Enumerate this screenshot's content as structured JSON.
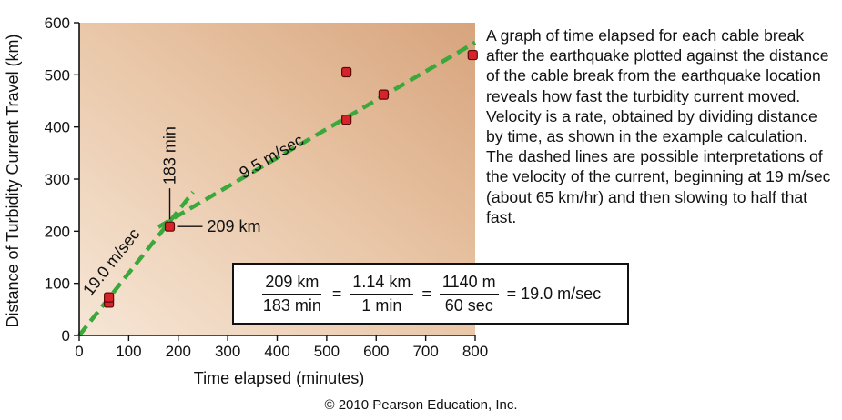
{
  "chart_data": {
    "type": "scatter",
    "xlabel": "Time elapsed (minutes)",
    "ylabel": "Distance of Turbidity Current Travel (km)",
    "xlim": [
      0,
      800
    ],
    "ylim": [
      0,
      600
    ],
    "x_ticks": [
      0,
      100,
      200,
      300,
      400,
      500,
      600,
      700,
      800
    ],
    "y_ticks": [
      0,
      100,
      200,
      300,
      400,
      500,
      600
    ],
    "grid": false,
    "points": [
      {
        "x": 60,
        "y": 63
      },
      {
        "x": 60,
        "y": 73
      },
      {
        "x": 183,
        "y": 209
      },
      {
        "x": 540,
        "y": 505
      },
      {
        "x": 540,
        "y": 414
      },
      {
        "x": 615,
        "y": 462
      },
      {
        "x": 795,
        "y": 538
      }
    ],
    "lines": [
      {
        "label": "19.0 m/sec",
        "style": "dashed",
        "color": "#3aa83a",
        "x": [
          0,
          230
        ],
        "y": [
          0,
          275
        ]
      },
      {
        "label": "9.5 m/sec",
        "style": "dashed",
        "color": "#3aa83a",
        "x": [
          160,
          800
        ],
        "y": [
          208,
          562
        ]
      }
    ],
    "annotations": [
      {
        "text": "183 min",
        "x": 183,
        "y": 209
      },
      {
        "text": "209 km",
        "x": 183,
        "y": 209
      }
    ]
  },
  "caption": "A graph of time elapsed for each cable break after the earthquake plotted against the distance of the cable break from the earthquake location reveals how fast the turbidity current moved. Velocity is a rate, obtained by dividing distance by time, as shown in the example calculation. The dashed lines are possible interpretations of the velocity of the current, beginning at 19 m/sec (about 65 km/hr) and then slowing to half that fast.",
  "formula": {
    "f1_num": "209 km",
    "f1_den": "183 min",
    "f2_num": "1.14 km",
    "f2_den": "1 min",
    "f3_num": "1140 m",
    "f3_den": "60 sec",
    "eq": "=",
    "result": "= 19.0 m/sec"
  },
  "copyright": "© 2010 Pearson Education, Inc.",
  "colors": {
    "marker_fill": "#d8232a",
    "line": "#3aa83a",
    "bg_light": "#f4e0cc",
    "bg_dark": "#d9a882"
  }
}
